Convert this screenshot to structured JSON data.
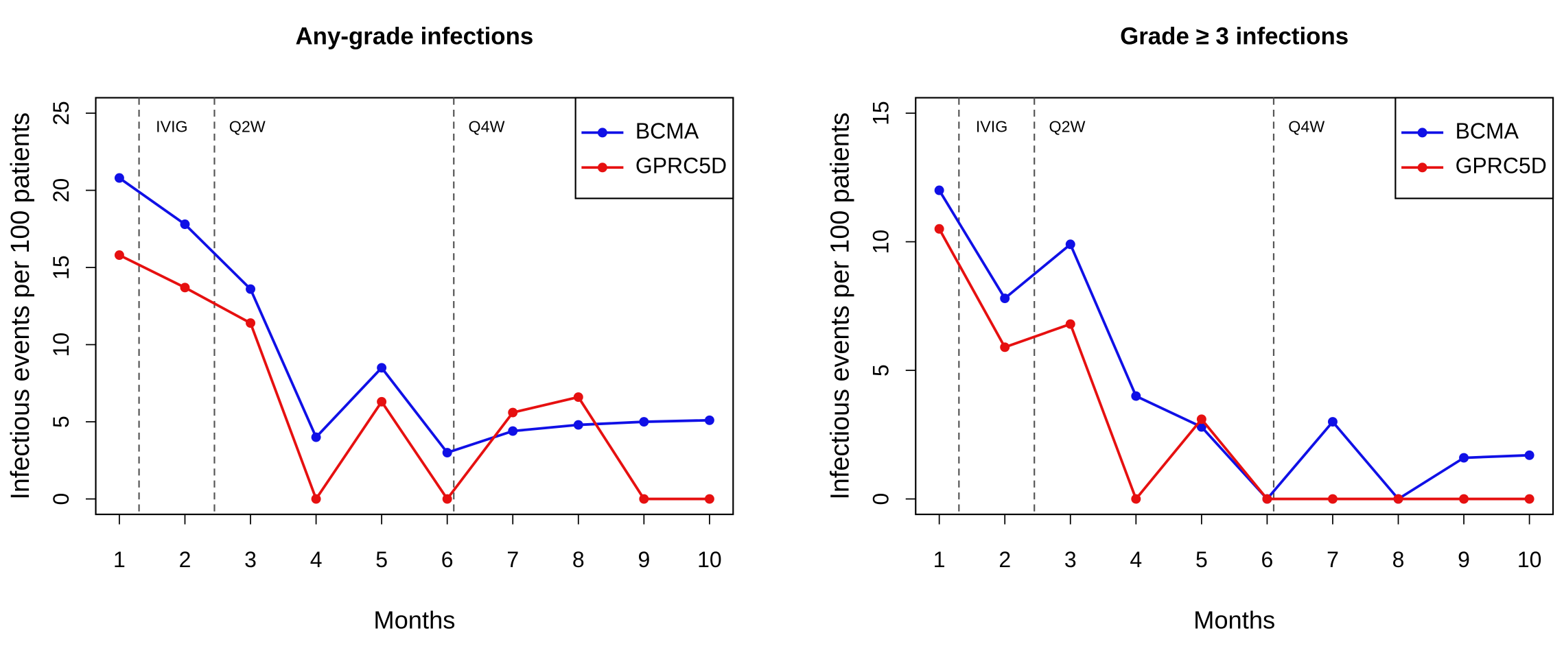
{
  "chart_data": [
    {
      "type": "line",
      "title": "Any-grade infections",
      "x_label": "Months",
      "y_label": "Infectious events per 100 patients",
      "x": [
        1,
        2,
        3,
        4,
        5,
        6,
        7,
        8,
        9,
        10
      ],
      "xlim": [
        0.64,
        10.36
      ],
      "ylim": [
        -1,
        26
      ],
      "xticks": [
        1,
        2,
        3,
        4,
        5,
        6,
        7,
        8,
        9,
        10
      ],
      "yticks": [
        0,
        5,
        10,
        15,
        20,
        25
      ],
      "legend": "topright",
      "vlines": [
        1.3,
        2.45,
        6.1
      ],
      "annotations": [
        {
          "text": "IVIG",
          "x": 1.8
        },
        {
          "text": "Q2W",
          "x": 2.95
        },
        {
          "text": "Q4W",
          "x": 6.6
        }
      ],
      "series": [
        {
          "name": "BCMA",
          "color": "#1010e6",
          "values": [
            20.8,
            17.8,
            13.6,
            4.0,
            8.5,
            3.0,
            4.4,
            4.8,
            5.0,
            5.1
          ]
        },
        {
          "name": "GPRC5D",
          "color": "#e61010",
          "values": [
            15.8,
            13.7,
            11.4,
            0,
            6.3,
            0,
            5.6,
            6.6,
            0,
            0
          ]
        }
      ]
    },
    {
      "type": "line",
      "title": "Grade ≥ 3 infections",
      "x_label": "Months",
      "y_label": "Infectious events per 100 patients",
      "x": [
        1,
        2,
        3,
        4,
        5,
        6,
        7,
        8,
        9,
        10
      ],
      "xlim": [
        0.64,
        10.36
      ],
      "ylim": [
        -0.6,
        15.6
      ],
      "xticks": [
        1,
        2,
        3,
        4,
        5,
        6,
        7,
        8,
        9,
        10
      ],
      "yticks": [
        0,
        5,
        10,
        15
      ],
      "legend": "topright",
      "vlines": [
        1.3,
        2.45,
        6.1
      ],
      "annotations": [
        {
          "text": "IVIG",
          "x": 1.8
        },
        {
          "text": "Q2W",
          "x": 2.95
        },
        {
          "text": "Q4W",
          "x": 6.6
        }
      ],
      "series": [
        {
          "name": "BCMA",
          "color": "#1010e6",
          "values": [
            12.0,
            7.8,
            9.9,
            4.0,
            2.8,
            0,
            3.0,
            0,
            1.6,
            1.7
          ]
        },
        {
          "name": "GPRC5D",
          "color": "#e61010",
          "values": [
            10.5,
            5.9,
            6.8,
            0,
            3.1,
            0,
            0,
            0,
            0,
            0
          ]
        }
      ]
    }
  ]
}
